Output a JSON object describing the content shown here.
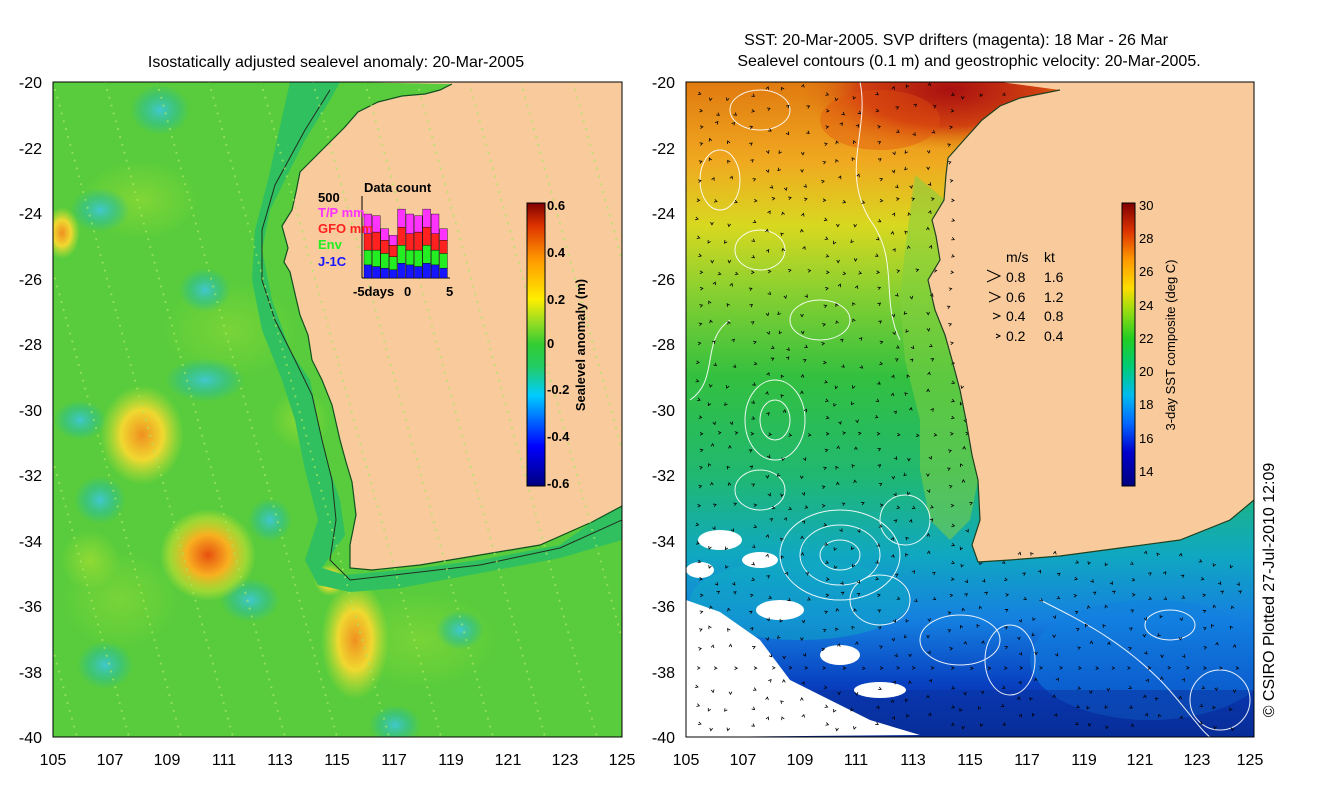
{
  "left_map": {
    "title": "Isostatically adjusted sealevel anomaly: 20-Mar-2005",
    "lon_ticks": [
      "105",
      "107",
      "109",
      "111",
      "113",
      "115",
      "117",
      "119",
      "121",
      "123",
      "125"
    ],
    "lat_ticks": [
      "-20",
      "-22",
      "-24",
      "-26",
      "-28",
      "-30",
      "-32",
      "-34",
      "-36",
      "-38",
      "-40"
    ],
    "colorbar": {
      "label": "Sealevel anomaly (m)",
      "ticks": [
        "0.6",
        "0.4",
        "0.2",
        "0",
        "-0.2",
        "-0.4",
        "-0.6"
      ],
      "range": [
        -0.6,
        0.6
      ]
    },
    "data_count": {
      "title": "Data count",
      "ymax_label": "500",
      "xtick_labels": [
        "-5days",
        "0",
        "5"
      ],
      "legend": [
        {
          "label": "T/P mm",
          "color": "#ff33ff"
        },
        {
          "label": "GFO mm",
          "color": "#ff2020"
        },
        {
          "label": "Env",
          "color": "#22ee22"
        },
        {
          "label": "J-1C",
          "color": "#1515ff"
        }
      ],
      "bars": [
        [
          80,
          90,
          100,
          120
        ],
        [
          70,
          100,
          110,
          100
        ],
        [
          60,
          90,
          80,
          70
        ],
        [
          50,
          80,
          70,
          60
        ],
        [
          90,
          110,
          110,
          110
        ],
        [
          80,
          90,
          100,
          120
        ],
        [
          70,
          100,
          110,
          100
        ],
        [
          90,
          110,
          110,
          110
        ],
        [
          80,
          90,
          100,
          120
        ],
        [
          60,
          90,
          80,
          70
        ]
      ]
    }
  },
  "right_map": {
    "title_line1": "SST: 20-Mar-2005. SVP drifters (magenta): 18 Mar - 26 Mar",
    "title_line2": "Sealevel contours (0.1 m) and geostrophic velocity: 20-Mar-2005.",
    "lon_ticks": [
      "105",
      "107",
      "109",
      "111",
      "113",
      "115",
      "117",
      "119",
      "121",
      "123",
      "125"
    ],
    "lat_ticks": [
      "-20",
      "-22",
      "-24",
      "-26",
      "-28",
      "-30",
      "-32",
      "-34",
      "-36",
      "-38",
      "-40"
    ],
    "colorbar": {
      "label": "3-day SST composite (deg C)",
      "ticks": [
        "30",
        "28",
        "26",
        "24",
        "22",
        "20",
        "18",
        "16",
        "14"
      ],
      "range": [
        13,
        30
      ]
    },
    "velocity_legend": {
      "header_ms": "m/s",
      "header_kt": "kt",
      "rows": [
        {
          "ms": "0.8",
          "kt": "1.6"
        },
        {
          "ms": "0.6",
          "kt": "1.2"
        },
        {
          "ms": "0.4",
          "kt": "0.8"
        },
        {
          "ms": "0.2",
          "kt": "0.4"
        }
      ]
    }
  },
  "credit": "© CSIRO Plotted 27-Jul-2010 12:09",
  "colors": {
    "land": "#f9cb9c",
    "ocean_base": "#33cc33"
  }
}
